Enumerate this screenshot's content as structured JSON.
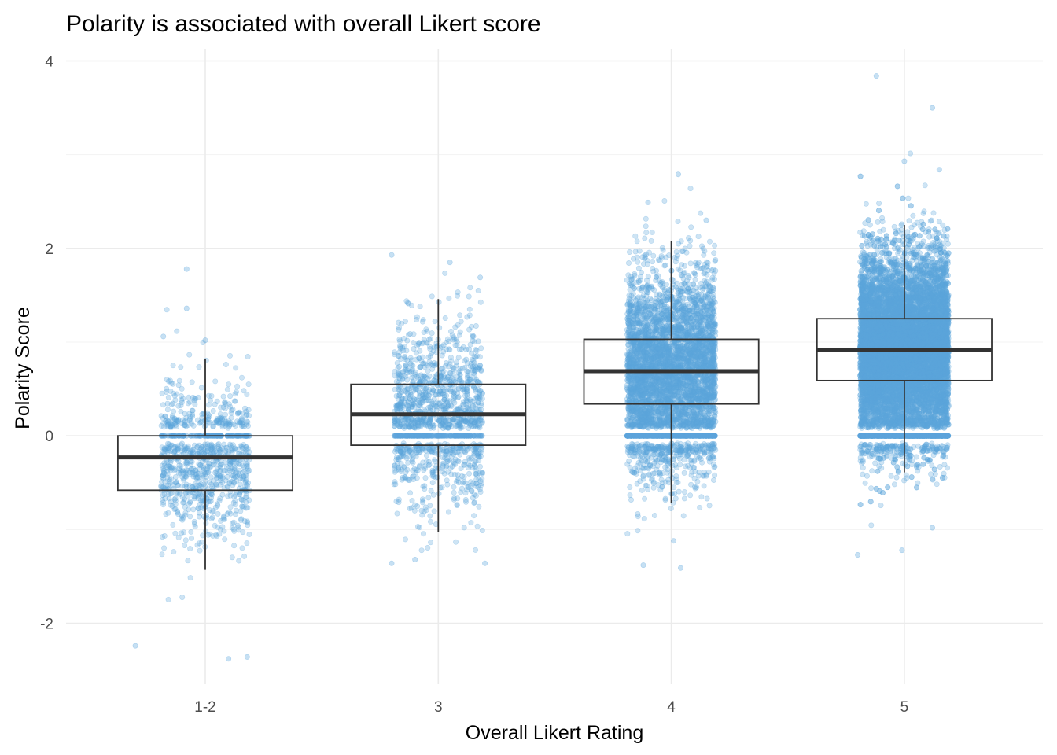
{
  "chart_data": {
    "type": "box",
    "title": "Polarity is associated with overall Likert score",
    "xlabel": "Overall Likert Rating",
    "ylabel": "Polarity Score",
    "categories": [
      "1-2",
      "3",
      "4",
      "5"
    ],
    "ylim": [
      -2.65,
      4.13
    ],
    "yticks": [
      -2,
      0,
      2,
      4
    ],
    "ytick_labels": [
      "-2",
      "0",
      "2",
      "4"
    ],
    "grid": true,
    "legend": "none",
    "colors": {
      "points": "#5DA5DC",
      "box_stroke": "#333333",
      "grid_major": "#EBEBEB",
      "grid_minor": "#F3F3F3"
    },
    "boxes": [
      {
        "category": "1-2",
        "whisker_low": -1.43,
        "q1": -0.58,
        "median": -0.23,
        "q3": 0.0,
        "whisker_high": 0.82
      },
      {
        "category": "3",
        "whisker_low": -1.03,
        "q1": -0.1,
        "median": 0.23,
        "q3": 0.55,
        "whisker_high": 1.46
      },
      {
        "category": "4",
        "whisker_low": -0.72,
        "q1": 0.34,
        "median": 0.69,
        "q3": 1.03,
        "whisker_high": 2.08
      },
      {
        "category": "5",
        "whisker_low": -0.39,
        "q1": 0.59,
        "median": 0.92,
        "q3": 1.25,
        "whisker_high": 2.25
      }
    ],
    "points_density": [
      {
        "category": "1-2",
        "count": 900,
        "zero_count": 120,
        "y_min": -2.38,
        "y_max": 1.78
      },
      {
        "category": "3",
        "count": 1300,
        "zero_count": 160,
        "y_min": -1.38,
        "y_max": 1.93
      },
      {
        "category": "4",
        "count": 4500,
        "zero_count": 500,
        "y_min": -1.41,
        "y_max": 2.79
      },
      {
        "category": "5",
        "count": 11000,
        "zero_count": 1000,
        "y_min": -1.27,
        "y_max": 3.84
      }
    ],
    "outliers": [
      {
        "category": "1-2",
        "points": [
          [
            -0.3,
            -2.24
          ],
          [
            0.1,
            -2.38
          ],
          [
            0.18,
            -2.36
          ],
          [
            -0.08,
            1.78
          ],
          [
            -0.08,
            1.36
          ],
          [
            0.0,
            1.02
          ],
          [
            -0.18,
            1.06
          ]
        ]
      },
      {
        "category": "3",
        "points": [
          [
            -0.2,
            1.93
          ],
          [
            0.05,
            1.85
          ],
          [
            0.18,
            1.69
          ],
          [
            -0.2,
            -1.36
          ],
          [
            0.2,
            -1.36
          ],
          [
            -0.1,
            -1.32
          ]
        ]
      },
      {
        "category": "4",
        "points": [
          [
            0.03,
            2.79
          ],
          [
            -0.1,
            2.49
          ],
          [
            0.15,
            2.3
          ],
          [
            -0.12,
            -1.38
          ],
          [
            0.04,
            -1.41
          ],
          [
            0.01,
            -1.12
          ]
        ]
      },
      {
        "category": "5",
        "points": [
          [
            -0.12,
            3.84
          ],
          [
            0.12,
            3.5
          ],
          [
            0.0,
            2.93
          ],
          [
            0.15,
            2.84
          ],
          [
            -0.2,
            -1.27
          ],
          [
            -0.01,
            -1.22
          ],
          [
            0.12,
            -0.98
          ]
        ]
      }
    ]
  }
}
